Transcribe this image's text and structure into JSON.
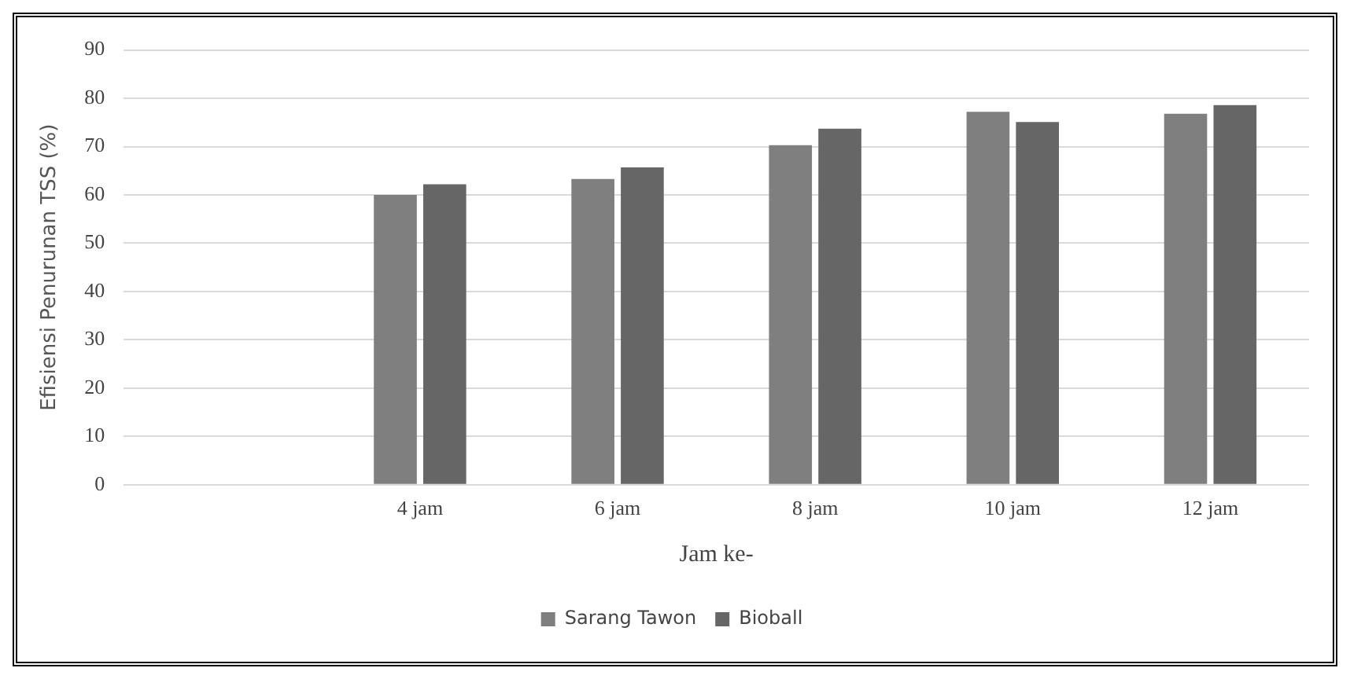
{
  "chart_data": {
    "type": "bar",
    "xlabel": "Jam ke-",
    "ylabel": "Efisiensi Penurunan TSS (%)",
    "categories": [
      null,
      "4 jam",
      "6 jam",
      "8 jam",
      "10 jam",
      "12 jam"
    ],
    "series": [
      {
        "name": "Sarang Tawon",
        "color": "#7f7f7f",
        "values": [
          null,
          60.0,
          63.3,
          70.3,
          77.2,
          76.8
        ]
      },
      {
        "name": "Bioball",
        "color": "#666666",
        "values": [
          null,
          62.2,
          65.7,
          73.7,
          75.1,
          78.6
        ]
      }
    ],
    "ylim": [
      0,
      90
    ],
    "yticks": [
      0,
      10,
      20,
      30,
      40,
      50,
      60,
      70,
      80,
      90
    ],
    "grid": "y",
    "legend": "bottom"
  }
}
